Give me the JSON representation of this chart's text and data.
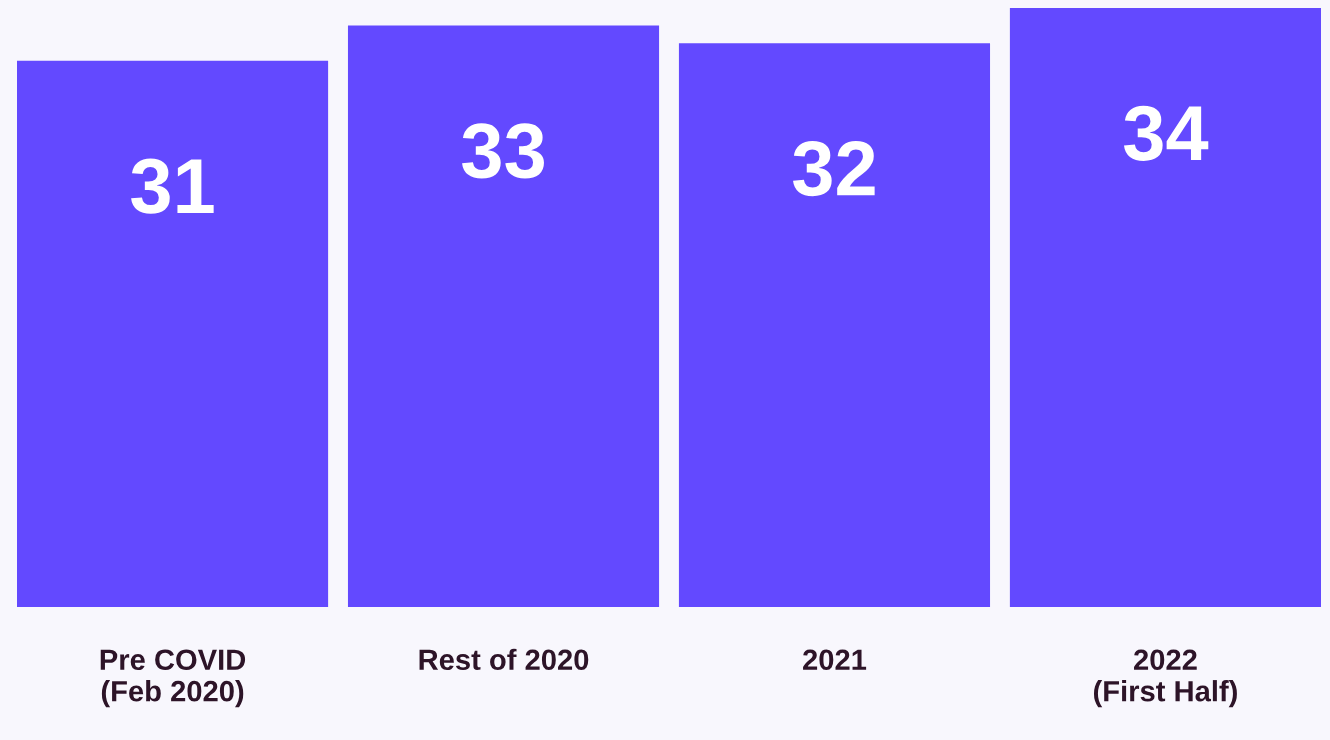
{
  "chart_data": {
    "type": "bar",
    "categories": [
      "Pre COVID\n(Feb 2020)",
      "Rest of 2020",
      "2021",
      "2022\n(First Half)"
    ],
    "values": [
      31,
      33,
      32,
      34
    ],
    "color": "#6349ff",
    "data_labels": true,
    "grid": false,
    "legend": false
  }
}
